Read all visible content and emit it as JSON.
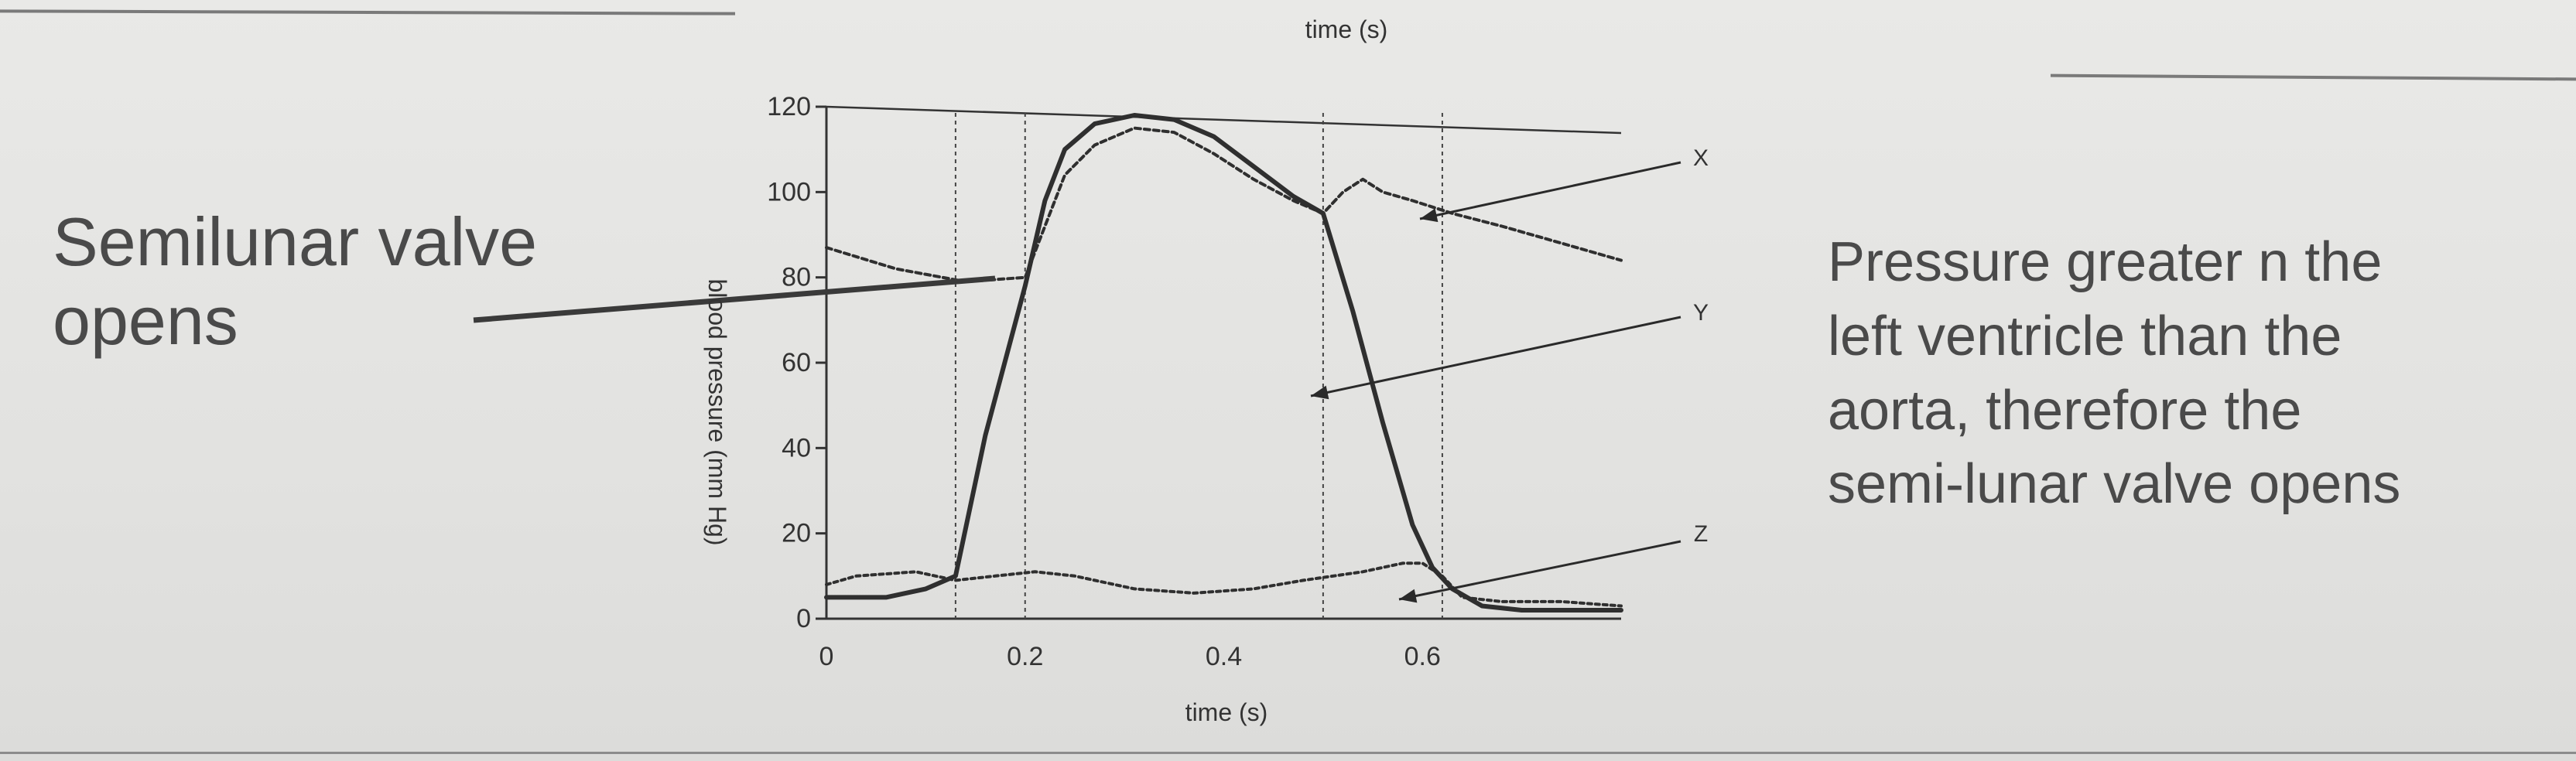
{
  "page": {
    "top_caption": "time (s)",
    "left_annotation": [
      "Semilunar valve",
      "opens"
    ],
    "right_annotation": [
      "Pressure greater n the",
      "left ventricle than the",
      "aorta, therefore the",
      "semi-lunar valve opens"
    ]
  },
  "chart_data": {
    "type": "line",
    "title": "",
    "xlabel": "time (s)",
    "ylabel": "blood pressure (mm Hg)",
    "xlim": [
      0,
      0.8
    ],
    "ylim": [
      0,
      120
    ],
    "x_ticks": [
      "0",
      "0.2",
      "0.4",
      "0.6"
    ],
    "x_tick_values": [
      0,
      0.2,
      0.4,
      0.6
    ],
    "y_ticks": [
      "0",
      "20",
      "40",
      "60",
      "80",
      "100",
      "120"
    ],
    "y_tick_values": [
      0,
      20,
      40,
      60,
      80,
      100,
      120
    ],
    "grid": false,
    "markers": [
      "X",
      "Y",
      "Z"
    ],
    "vertical_lines_x": [
      0.13,
      0.2,
      0.5,
      0.62
    ],
    "series": [
      {
        "name": "",
        "style": "solid",
        "points": [
          [
            0.0,
            5
          ],
          [
            0.06,
            5
          ],
          [
            0.1,
            7
          ],
          [
            0.13,
            10
          ],
          [
            0.16,
            43
          ],
          [
            0.2,
            78
          ],
          [
            0.22,
            98
          ],
          [
            0.24,
            110
          ],
          [
            0.27,
            116
          ],
          [
            0.31,
            118
          ],
          [
            0.35,
            117
          ],
          [
            0.39,
            113
          ],
          [
            0.43,
            106
          ],
          [
            0.47,
            99
          ],
          [
            0.5,
            95
          ],
          [
            0.53,
            72
          ],
          [
            0.56,
            46
          ],
          [
            0.59,
            22
          ],
          [
            0.61,
            12
          ],
          [
            0.63,
            7
          ],
          [
            0.66,
            3
          ],
          [
            0.7,
            2
          ],
          [
            0.8,
            2
          ]
        ]
      },
      {
        "name": "",
        "style": "dotted",
        "points": [
          [
            0.0,
            8
          ],
          [
            0.03,
            10
          ],
          [
            0.09,
            11
          ],
          [
            0.13,
            9
          ],
          [
            0.17,
            10
          ],
          [
            0.21,
            11
          ],
          [
            0.25,
            10
          ],
          [
            0.31,
            7
          ],
          [
            0.37,
            6
          ],
          [
            0.43,
            7
          ],
          [
            0.48,
            9
          ],
          [
            0.54,
            11
          ],
          [
            0.58,
            13
          ],
          [
            0.6,
            13
          ],
          [
            0.62,
            10
          ],
          [
            0.64,
            5
          ],
          [
            0.68,
            4
          ],
          [
            0.74,
            4
          ],
          [
            0.8,
            3
          ]
        ]
      },
      {
        "name": "",
        "style": "dashed",
        "points": [
          [
            0.0,
            87
          ],
          [
            0.07,
            82
          ],
          [
            0.14,
            79
          ],
          [
            0.2,
            80
          ],
          [
            0.22,
            92
          ],
          [
            0.24,
            104
          ],
          [
            0.27,
            111
          ],
          [
            0.31,
            115
          ],
          [
            0.35,
            114
          ],
          [
            0.39,
            109
          ],
          [
            0.43,
            103
          ],
          [
            0.47,
            98
          ],
          [
            0.5,
            95
          ],
          [
            0.52,
            100
          ],
          [
            0.54,
            103
          ],
          [
            0.56,
            100
          ],
          [
            0.59,
            98
          ],
          [
            0.63,
            95
          ],
          [
            0.68,
            92
          ],
          [
            0.74,
            88
          ],
          [
            0.8,
            84
          ]
        ]
      }
    ]
  }
}
